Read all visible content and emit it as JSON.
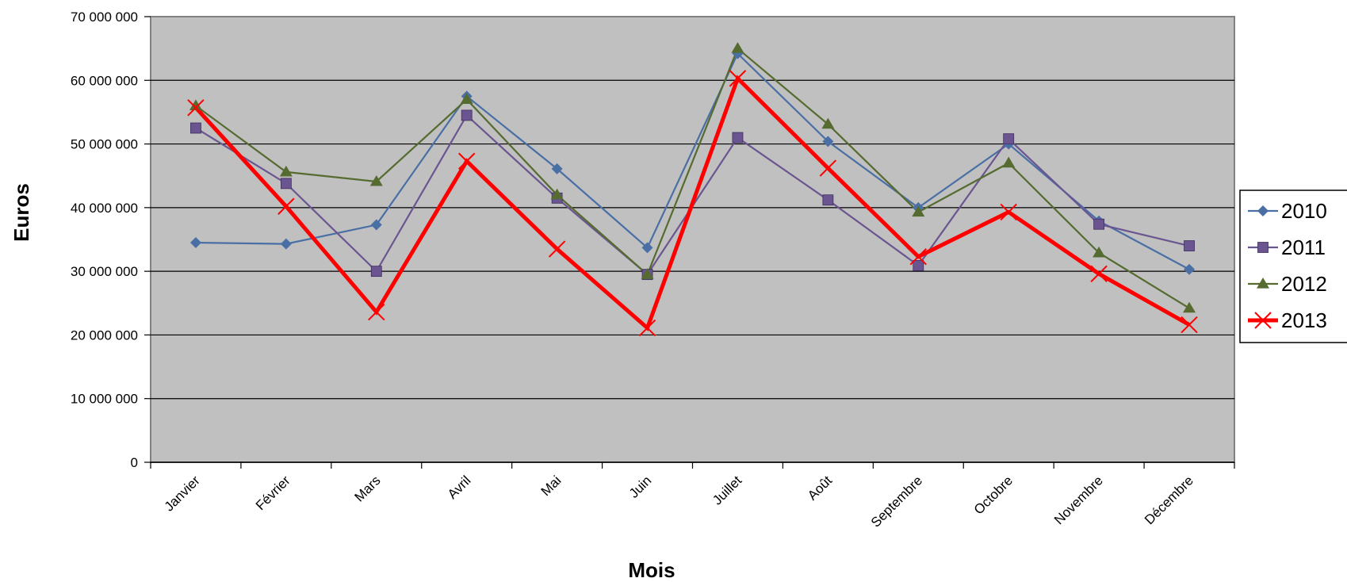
{
  "chart_data": {
    "type": "line",
    "title": "",
    "xlabel": "Mois",
    "ylabel": "Euros",
    "categories": [
      "Janvier",
      "Février",
      "Mars",
      "Avril",
      "Mai",
      "Juin",
      "Juillet",
      "Août",
      "Septembre",
      "Octobre",
      "Novembre",
      "Décembre"
    ],
    "ylim": [
      0,
      70000000
    ],
    "yticks": [
      0,
      10000000,
      20000000,
      30000000,
      40000000,
      50000000,
      60000000,
      70000000
    ],
    "ytick_labels": [
      "0",
      "10 000 000",
      "20 000 000",
      "30 000 000",
      "40 000 000",
      "50 000 000",
      "60 000 000",
      "70 000 000"
    ],
    "grid": true,
    "plot_background": "#c0c0c0",
    "legend_position": "right",
    "series": [
      {
        "name": "2010",
        "color": "#4a6fa5",
        "marker": "diamond",
        "values": [
          34500000,
          34300000,
          37300000,
          57500000,
          46100000,
          33700000,
          64200000,
          50400000,
          40000000,
          50000000,
          37900000,
          30300000
        ]
      },
      {
        "name": "2011",
        "color": "#6b5591",
        "marker": "square",
        "values": [
          52500000,
          43800000,
          30000000,
          54500000,
          41500000,
          29500000,
          51000000,
          41200000,
          30900000,
          50800000,
          37400000,
          34000000
        ]
      },
      {
        "name": "2012",
        "color": "#556b2f",
        "marker": "triangle",
        "values": [
          56000000,
          45600000,
          44100000,
          57000000,
          42000000,
          29500000,
          65000000,
          53100000,
          39300000,
          47000000,
          32900000,
          24200000
        ]
      },
      {
        "name": "2013",
        "color": "#ff0000",
        "marker": "x",
        "values": [
          55700000,
          40200000,
          23600000,
          47300000,
          33500000,
          21100000,
          60300000,
          46200000,
          32300000,
          39300000,
          29600000,
          21600000
        ]
      }
    ]
  }
}
